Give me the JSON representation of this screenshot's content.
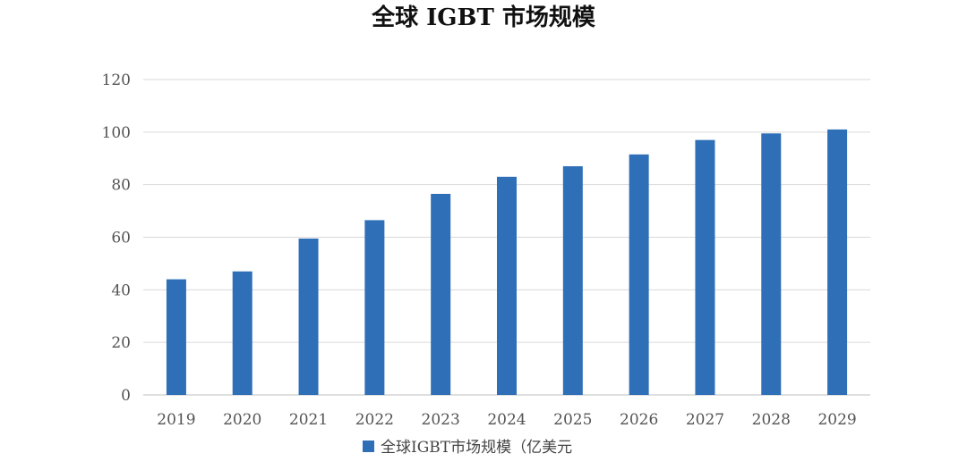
{
  "chart_data": {
    "type": "bar",
    "title": "全球 IGBT 市场规模",
    "categories": [
      "2019",
      "2020",
      "2021",
      "2022",
      "2023",
      "2024",
      "2025",
      "2026",
      "2027",
      "2028",
      "2029"
    ],
    "series": [
      {
        "name": "全球IGBT市场规模（亿美元",
        "values": [
          44,
          47,
          59.5,
          66.5,
          76.5,
          83,
          87,
          91.5,
          97,
          99.5,
          101
        ]
      }
    ],
    "ylim": [
      0,
      120
    ],
    "yticks": [
      0,
      20,
      40,
      60,
      80,
      100,
      120
    ],
    "grid": true,
    "legend": "bottom",
    "colors": {
      "bar": "#2e6fb7",
      "grid": "#d9d9d9",
      "axis": "#bfbfbf"
    }
  }
}
